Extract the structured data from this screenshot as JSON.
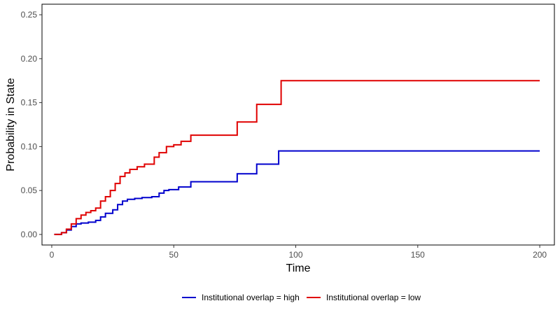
{
  "chart_data": {
    "type": "line",
    "step": true,
    "xlabel": "Time",
    "ylabel": "Probability in State",
    "xlim": [
      -4,
      206
    ],
    "ylim": [
      -0.012,
      0.262
    ],
    "x_ticks": [
      0,
      50,
      100,
      150,
      200
    ],
    "x_tick_labels": [
      "0",
      "50",
      "100",
      "150",
      "200"
    ],
    "y_ticks": [
      0.0,
      0.05,
      0.1,
      0.15,
      0.2,
      0.25
    ],
    "y_tick_labels": [
      "0.00",
      "0.05",
      "0.10",
      "0.15",
      "0.20",
      "0.25"
    ],
    "grid": false,
    "legend_position": "bottom",
    "series": [
      {
        "name": "Institutional overlap = high",
        "color": "#0000cd",
        "x": [
          1,
          4,
          6,
          8,
          10,
          12,
          15,
          18,
          20,
          22,
          25,
          27,
          29,
          31,
          34,
          37,
          41,
          44,
          46,
          48,
          52,
          57,
          62,
          70,
          76,
          84,
          93,
          200
        ],
        "y": [
          0.0,
          0.002,
          0.005,
          0.009,
          0.012,
          0.013,
          0.014,
          0.016,
          0.02,
          0.024,
          0.028,
          0.034,
          0.038,
          0.04,
          0.041,
          0.042,
          0.043,
          0.047,
          0.05,
          0.051,
          0.054,
          0.06,
          0.06,
          0.06,
          0.069,
          0.08,
          0.095,
          0.095
        ]
      },
      {
        "name": "Institutional overlap = low",
        "color": "#e00000",
        "x": [
          1,
          4,
          6,
          8,
          10,
          12,
          14,
          16,
          18,
          20,
          22,
          24,
          26,
          28,
          30,
          32,
          35,
          38,
          42,
          44,
          47,
          50,
          53,
          57,
          65,
          76,
          84,
          94,
          200
        ],
        "y": [
          0.0,
          0.002,
          0.006,
          0.012,
          0.018,
          0.022,
          0.025,
          0.027,
          0.03,
          0.038,
          0.043,
          0.05,
          0.058,
          0.066,
          0.07,
          0.074,
          0.077,
          0.08,
          0.088,
          0.093,
          0.1,
          0.102,
          0.106,
          0.113,
          0.113,
          0.128,
          0.148,
          0.175,
          0.175
        ]
      }
    ]
  }
}
